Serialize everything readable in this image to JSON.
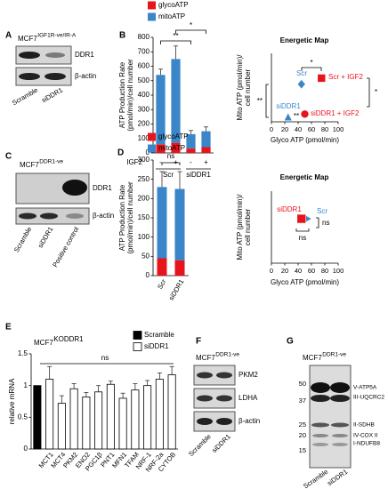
{
  "panel_labels": [
    "A",
    "B",
    "C",
    "D",
    "E",
    "F",
    "G"
  ],
  "blots": [
    {
      "title": "MCF7",
      "title_superscript": "IGF1R-ve/IR-A",
      "bands": [
        "DDR1",
        "β-actin"
      ],
      "lanes": [
        "Scramble",
        "siDDR1"
      ]
    },
    {
      "title": "MCF7",
      "title_superscript": "DDR1-ve",
      "bands": [
        "DDR1",
        "β-actin"
      ],
      "lanes": [
        "Scramble",
        "siDDR1",
        "Positive control"
      ]
    },
    {
      "title": "MCF7",
      "title_superscript": "DDR1-ve",
      "bands": [
        "PKM2",
        "LDHA",
        "β-actin"
      ],
      "lanes": [
        "Scramble",
        "siDDR1"
      ]
    },
    {
      "title": "MCF7",
      "title_superscript": "DDR1-ve",
      "markers": [
        "50",
        "37",
        "25",
        "20",
        "15"
      ],
      "bands": [
        "V-ATP5A",
        "III-UQCRC2",
        "II-SDHB",
        "IV-COX II",
        "I-NDUFB8"
      ],
      "lanes": [
        "Scramble",
        "siDDR1"
      ]
    }
  ],
  "chart_data": [
    {
      "type": "bar",
      "ylabel": [
        "ATP Production Rate",
        "(pmol/min)/cell number"
      ],
      "categories": [
        "-",
        "+",
        "-",
        "+"
      ],
      "category_axis_label": "IGF2",
      "groups": [
        "Scr",
        "siDDR1"
      ],
      "series": [
        {
          "name": "glycoATP",
          "color": "#e8141b",
          "values": [
            60,
            70,
            30,
            40
          ]
        },
        {
          "name": "mitoATP",
          "color": "#3a86c8",
          "values": [
            480,
            580,
            100,
            110
          ],
          "errors": [
            40,
            90,
            25,
            30
          ]
        }
      ],
      "ylim": [
        0,
        800
      ],
      "yticks": [
        0,
        100,
        200,
        300,
        400,
        500,
        600,
        700,
        800
      ],
      "annotations": [
        "**",
        "*"
      ],
      "legend": "top-left"
    },
    {
      "type": "scatter",
      "title": "Energetic Map",
      "xlabel": "Glyco ATP (pmol/min)",
      "ylabel": [
        "Mito ATP (pmol/min)/",
        "cell number"
      ],
      "xlim": [
        0,
        100
      ],
      "xticks": [
        0,
        20,
        40,
        60,
        80,
        100
      ],
      "ylim": [
        0,
        800
      ],
      "series": [
        {
          "name": "Scr",
          "color": "#3a86c8",
          "marker": "diamond",
          "x": [
            45
          ],
          "values": [
            440
          ]
        },
        {
          "name": "Scr + IGF2",
          "color": "#e8141b",
          "marker": "square",
          "x": [
            75
          ],
          "values": [
            510
          ]
        },
        {
          "name": "siDDR1",
          "color": "#3a86c8",
          "marker": "triangle",
          "x": [
            25
          ],
          "values": [
            50
          ]
        },
        {
          "name": "siDDR1 + IGF2",
          "color": "#e8141b",
          "marker": "circle",
          "x": [
            50
          ],
          "values": [
            90
          ]
        }
      ],
      "annotations": [
        "*",
        "**",
        "**",
        "*"
      ]
    },
    {
      "type": "bar",
      "ylabel": [
        "ATP Production Rate",
        "(pmol/min)/cell number"
      ],
      "categories": [
        "Scr",
        "siDDR1"
      ],
      "series": [
        {
          "name": "glycoATP",
          "color": "#e8141b",
          "values": [
            45,
            40
          ]
        },
        {
          "name": "mitoATP",
          "color": "#3a86c8",
          "values": [
            185,
            185
          ],
          "errors": [
            40,
            45
          ]
        }
      ],
      "ylim": [
        0,
        300
      ],
      "yticks": [
        0,
        50,
        100,
        150,
        200,
        250,
        300
      ],
      "annotations": [
        "ns"
      ],
      "legend": "top-left"
    },
    {
      "type": "scatter",
      "title": "Energetic Map",
      "xlabel": "Glyco ATP (pmol/min)",
      "ylabel": [
        "Mito ATP (pmol/min)/",
        "cell number"
      ],
      "xlim": [
        0,
        100
      ],
      "xticks": [
        0,
        20,
        40,
        60,
        80,
        100
      ],
      "ylim": [
        0,
        300
      ],
      "series": [
        {
          "name": "Scr",
          "color": "#3a86c8",
          "marker": "triangle-right",
          "x": [
            50
          ],
          "values": [
            185
          ]
        },
        {
          "name": "siDDR1",
          "color": "#e8141b",
          "marker": "square",
          "x": [
            45
          ],
          "values": [
            185
          ]
        }
      ],
      "annotations": [
        "ns",
        "ns"
      ]
    },
    {
      "type": "bar",
      "title": "MCF7",
      "title_superscript": "KODDR1",
      "ylabel": [
        "relative mRNA"
      ],
      "categories": [
        null,
        "MCT1",
        "MCT4",
        "PKM2",
        "ENO2",
        "PGC1β",
        "PNT1",
        "MFN1",
        "TFAM",
        "NRF-1",
        "NRF-2a",
        "CYTOB"
      ],
      "series": [
        {
          "name": "Scramble",
          "color": "#000000",
          "values": [
            1,
            null,
            null,
            null,
            null,
            null,
            null,
            null,
            null,
            null,
            null,
            null
          ]
        },
        {
          "name": "siDDR1",
          "color": "#ffffff",
          "values": [
            null,
            1.1,
            0.72,
            0.95,
            0.82,
            0.9,
            1.02,
            0.8,
            0.93,
            1.0,
            1.1,
            1.17
          ],
          "errors": [
            null,
            0.2,
            0.12,
            0.08,
            0.07,
            0.1,
            0.05,
            0.08,
            0.1,
            0.08,
            0.1,
            0.13
          ]
        }
      ],
      "edgecolor": "#000000",
      "ylim": [
        0,
        1.5
      ],
      "yticks": [
        0,
        0.5,
        1,
        1.5
      ],
      "annotations": [
        "ns"
      ],
      "legend": "top-right"
    }
  ]
}
